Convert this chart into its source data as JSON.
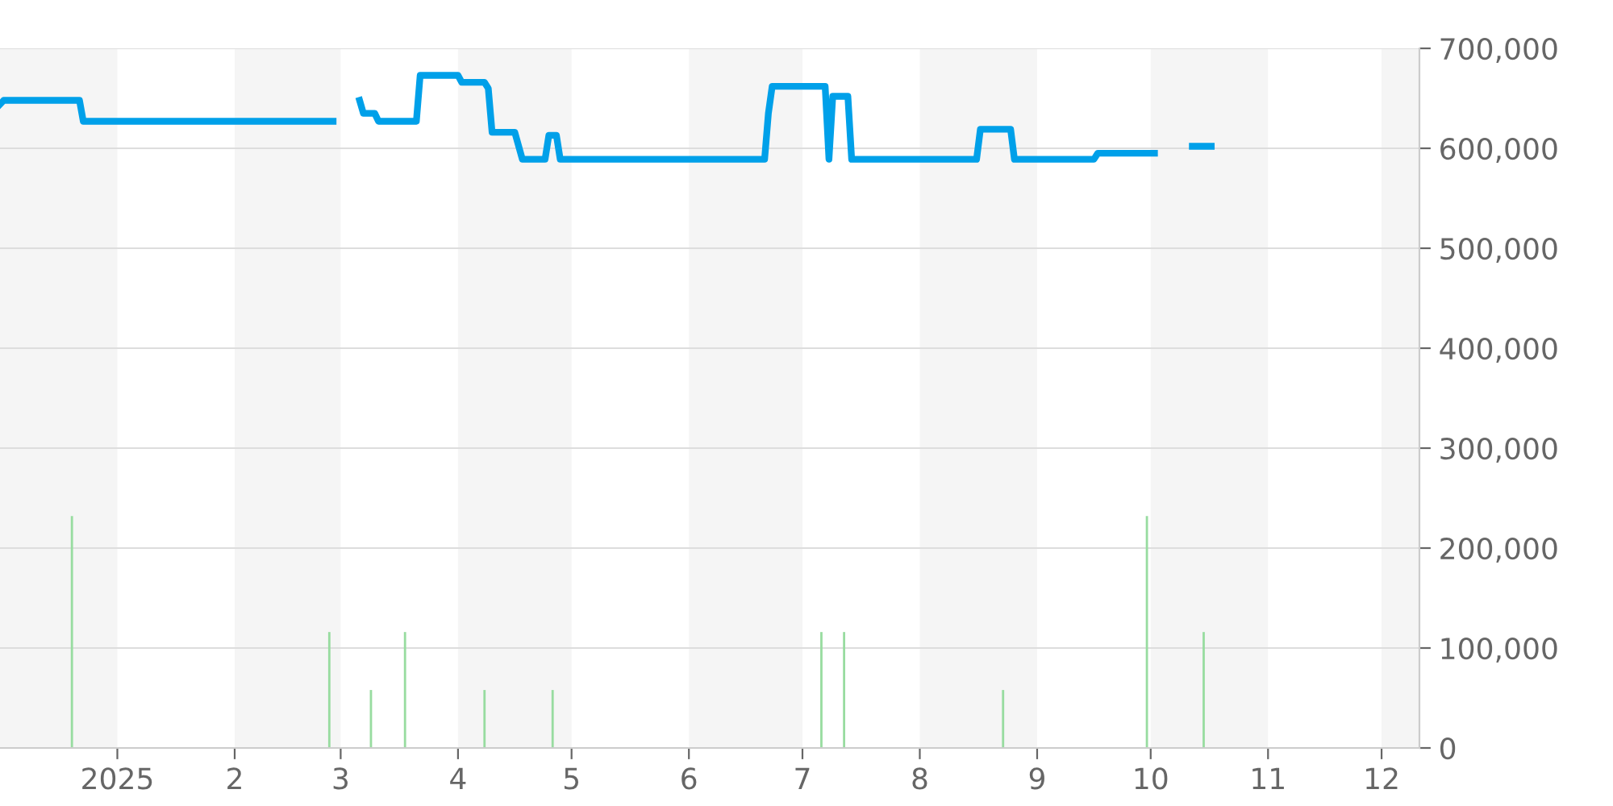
{
  "chart_data": {
    "type": "line",
    "x": [
      "2024-12-01",
      "2024-12-02",
      "2024-12-22",
      "2024-12-23",
      "2025-02-27",
      "2025-03-03",
      "2025-03-06",
      "2025-03-07",
      "2025-03-10",
      "2025-03-11",
      "2025-03-21",
      "2025-03-22",
      "2025-04-01",
      "2025-04-02",
      "2025-04-08",
      "2025-04-09",
      "2025-04-10",
      "2025-04-16",
      "2025-04-18",
      "2025-04-24",
      "2025-04-25",
      "2025-04-27",
      "2025-04-28",
      "2025-06-21",
      "2025-06-22",
      "2025-06-23",
      "2025-07-07",
      "2025-07-08",
      "2025-07-09",
      "2025-07-13",
      "2025-07-14",
      "2025-08-16",
      "2025-08-17",
      "2025-08-25",
      "2025-08-26",
      "2025-09-16",
      "2025-09-17",
      "2025-10-02",
      "2025-10-06",
      "2025-10-12",
      "2025-10-17"
    ],
    "series": [
      {
        "color": "#00a0e9",
        "values": [
          644000,
          648000,
          648000,
          627000,
          627000,
          null,
          648000,
          635000,
          635000,
          627000,
          627000,
          673000,
          673000,
          666000,
          666000,
          660000,
          616000,
          616000,
          589000,
          589000,
          613000,
          613000,
          589000,
          589000,
          635000,
          662000,
          662000,
          589000,
          652000,
          652000,
          589000,
          589000,
          619000,
          619000,
          589000,
          589000,
          595000,
          595000,
          null,
          602000,
          602000
        ]
      },
      {
        "type": "bar",
        "color": "#98dca0",
        "x": [
          "2024-12-20",
          "2025-02-26",
          "2025-03-09",
          "2025-03-18",
          "2025-04-08",
          "2025-04-26",
          "2025-07-06",
          "2025-07-12",
          "2025-08-23",
          "2025-09-30",
          "2025-10-15"
        ],
        "values": [
          232000,
          116000,
          58000,
          116000,
          58000,
          58000,
          116000,
          116000,
          58000,
          232000,
          116000
        ]
      }
    ],
    "xlim": [
      "2024-12-01",
      "2025-12-11"
    ],
    "xticks": [
      {
        "value": "2025-01-01",
        "label": "2025"
      },
      {
        "value": "2025-02-01",
        "label": "2"
      },
      {
        "value": "2025-03-01",
        "label": "3"
      },
      {
        "value": "2025-04-01",
        "label": "4"
      },
      {
        "value": "2025-05-01",
        "label": "5"
      },
      {
        "value": "2025-06-01",
        "label": "6"
      },
      {
        "value": "2025-07-01",
        "label": "7"
      },
      {
        "value": "2025-08-01",
        "label": "8"
      },
      {
        "value": "2025-09-01",
        "label": "9"
      },
      {
        "value": "2025-10-01",
        "label": "10"
      },
      {
        "value": "2025-11-01",
        "label": "11"
      },
      {
        "value": "2025-12-01",
        "label": "12"
      }
    ],
    "ylim": [
      0,
      700000
    ],
    "yticks": [
      0,
      {
        "value": 100000,
        "label": "100,000"
      },
      {
        "value": 200000,
        "label": "200,000"
      },
      {
        "value": 300000,
        "label": "300,000"
      },
      {
        "value": 400000,
        "label": "400,000"
      },
      {
        "value": 500000,
        "label": "500,000"
      },
      {
        "value": 600000,
        "label": "600,000"
      },
      {
        "value": 700000,
        "label": "700,000"
      }
    ],
    "bands": [
      {
        "axis": "x",
        "from": "2024-12-01",
        "to": "2025-01-01",
        "color": "#f5f5f5"
      },
      {
        "axis": "x",
        "from": "2025-02-01",
        "to": "2025-03-01",
        "color": "#f5f5f5"
      },
      {
        "axis": "x",
        "from": "2025-04-01",
        "to": "2025-05-01",
        "color": "#f5f5f5"
      },
      {
        "axis": "x",
        "from": "2025-06-01",
        "to": "2025-07-01",
        "color": "#f5f5f5"
      },
      {
        "axis": "x",
        "from": "2025-08-01",
        "to": "2025-09-01",
        "color": "#f5f5f5"
      },
      {
        "axis": "x",
        "from": "2025-10-01",
        "to": "2025-11-01",
        "color": "#f5f5f5"
      },
      {
        "axis": "x",
        "from": "2025-12-01",
        "to": "2025-12-11",
        "color": "#f5f5f5"
      }
    ],
    "grid": "y",
    "legend": false,
    "marker": "none",
    "line_style": "solid"
  }
}
